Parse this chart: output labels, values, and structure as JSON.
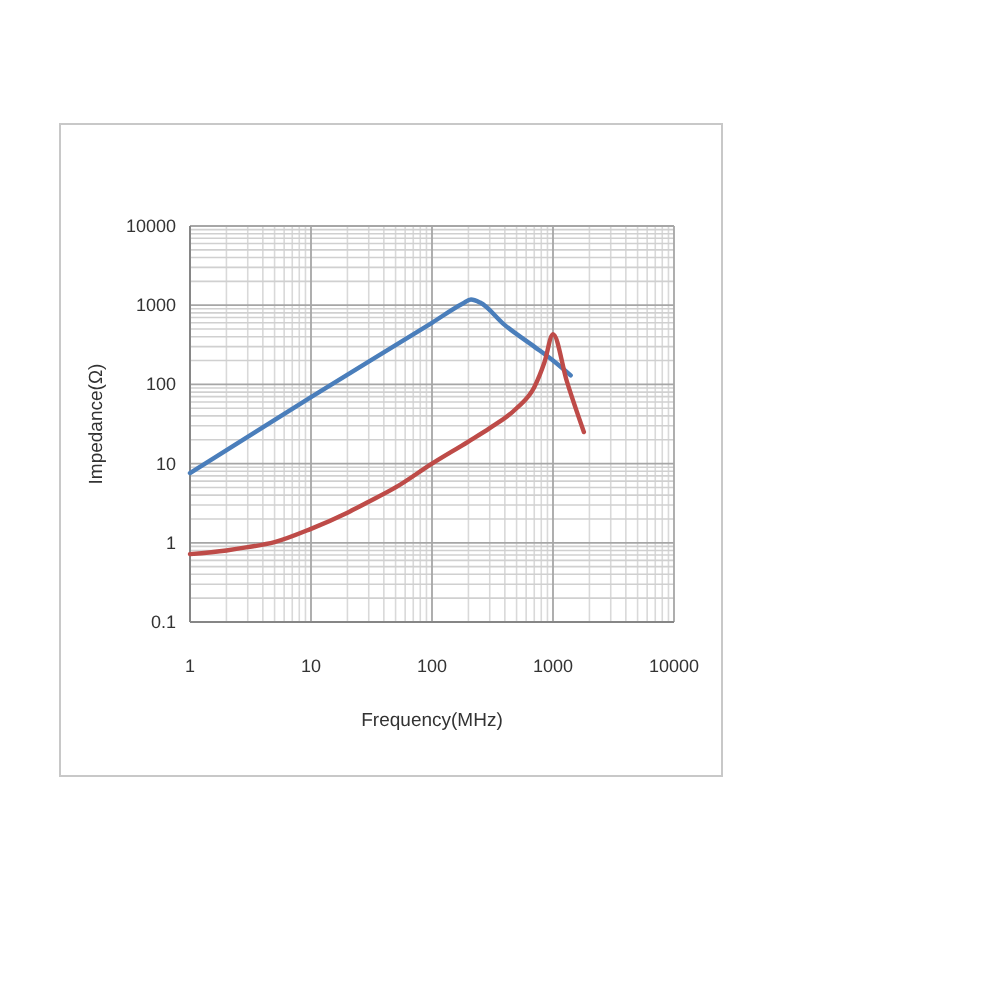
{
  "chart_data": {
    "type": "line",
    "xlabel": "Frequency(MHz)",
    "ylabel": "Impedance(Ω)",
    "log": "xy",
    "grid": true,
    "xlim": [
      1,
      10000
    ],
    "xticks": [
      1,
      10,
      100,
      1000,
      10000
    ],
    "ylim": [
      0.1,
      10000
    ],
    "yticks": [
      0.1,
      1,
      10,
      100,
      1000,
      10000
    ],
    "series": [
      {
        "color": "#4a7ebb",
        "x": [
          1,
          10,
          100,
          180,
          210,
          250,
          400,
          700,
          1000,
          1400
        ],
        "values": [
          7.6,
          69,
          600,
          1050,
          1180,
          1080,
          560,
          300,
          200,
          130
        ]
      },
      {
        "color": "#be4b48",
        "x": [
          1,
          2,
          3,
          5,
          10,
          20,
          30,
          50,
          100,
          200,
          300,
          500,
          700,
          850,
          1000,
          1300,
          1800
        ],
        "values": [
          0.72,
          0.8,
          0.88,
          1.02,
          1.5,
          2.4,
          3.3,
          5,
          10,
          19,
          28,
          50,
          92,
          190,
          430,
          110,
          25
        ]
      }
    ]
  }
}
